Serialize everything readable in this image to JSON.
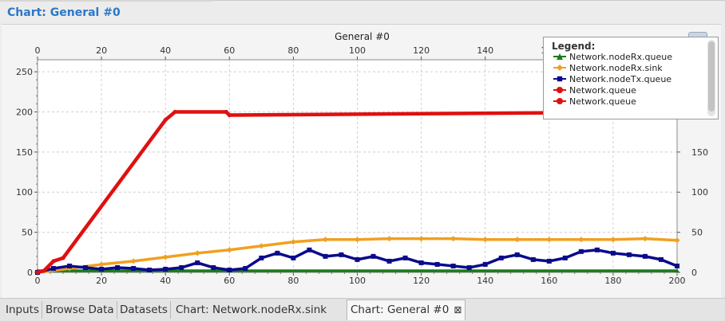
{
  "window": {
    "title": "Chart: General  #0"
  },
  "tabs": [
    {
      "label": "Inputs",
      "active": false
    },
    {
      "label": "Browse Data",
      "active": false
    },
    {
      "label": "Datasets",
      "active": false
    },
    {
      "label": "Chart: Network.nodeRx.sink",
      "active": false
    },
    {
      "label": "Chart: General  #0",
      "active": true,
      "close": "⊠"
    }
  ],
  "legend": {
    "title": "Legend:",
    "entries": [
      {
        "label": "Network.nodeRx.queue",
        "color": "#1a7a1a",
        "marker": "triangle"
      },
      {
        "label": "Network.nodeRx.sink",
        "color": "#f0a020",
        "marker": "diamond"
      },
      {
        "label": "Network.nodeTx.queue",
        "color": "#0a0a8c",
        "marker": "square"
      },
      {
        "label": "Network.queue",
        "color": "#e01010",
        "marker": "circle"
      },
      {
        "label": "Network.queue",
        "color": "#e01010",
        "marker": "circle"
      }
    ]
  },
  "chart_data": {
    "type": "line",
    "title": "General  #0",
    "xlim": [
      0,
      200
    ],
    "ylim": [
      0,
      265
    ],
    "x_ticks": [
      0,
      20,
      40,
      60,
      80,
      100,
      120,
      140,
      160,
      180,
      200
    ],
    "y_ticks": [
      0,
      50,
      100,
      150,
      200,
      250
    ],
    "x_tick_labels": [
      "0",
      "20",
      "40",
      "60",
      "80",
      "100",
      "120",
      "140",
      "160",
      "180",
      "200"
    ],
    "y_tick_labels": [
      "0",
      "50",
      "100",
      "150",
      "200",
      "250"
    ],
    "grid": true,
    "legend_position": "top-right",
    "series": [
      {
        "name": "Network.nodeRx.queue",
        "color": "#1a7a1a",
        "x": [
          0,
          200
        ],
        "values": [
          2,
          2
        ]
      },
      {
        "name": "Network.nodeRx.sink",
        "color": "#f0a020",
        "x": [
          0,
          10,
          20,
          30,
          40,
          50,
          60,
          70,
          80,
          90,
          100,
          110,
          120,
          130,
          140,
          150,
          160,
          170,
          180,
          190,
          200
        ],
        "values": [
          0,
          5,
          10,
          14,
          19,
          24,
          28,
          33,
          38,
          41,
          41,
          42,
          42,
          42,
          41,
          41,
          41,
          41,
          41,
          42,
          40
        ]
      },
      {
        "name": "Network.nodeTx.queue",
        "color": "#0a0a8c",
        "x": [
          0,
          5,
          10,
          15,
          20,
          25,
          30,
          35,
          40,
          45,
          50,
          55,
          60,
          65,
          70,
          75,
          80,
          85,
          90,
          95,
          100,
          105,
          110,
          115,
          120,
          125,
          130,
          135,
          140,
          145,
          150,
          155,
          160,
          165,
          170,
          175,
          180,
          185,
          190,
          195,
          200
        ],
        "values": [
          0,
          5,
          8,
          6,
          4,
          6,
          5,
          3,
          4,
          6,
          12,
          6,
          3,
          5,
          18,
          24,
          18,
          28,
          20,
          22,
          16,
          20,
          14,
          18,
          12,
          10,
          8,
          6,
          10,
          18,
          22,
          16,
          14,
          18,
          26,
          28,
          24,
          22,
          20,
          16,
          8
        ]
      },
      {
        "name": "Network.queue",
        "color": "#e01010",
        "x": [
          0,
          2,
          5,
          8,
          40,
          43,
          59,
          60,
          200
        ],
        "values": [
          0,
          2,
          14,
          18,
          190,
          200,
          200,
          196,
          200
        ]
      }
    ]
  }
}
